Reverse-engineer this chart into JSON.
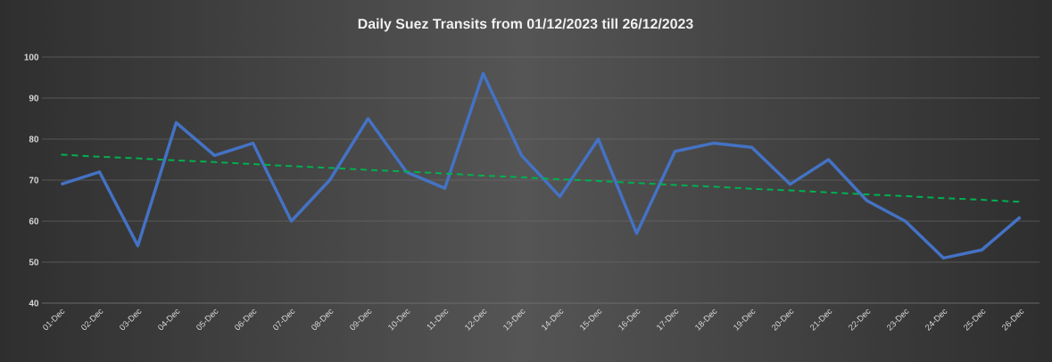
{
  "chart_data": {
    "type": "line",
    "title": "Daily Suez Transits from 01/12/2023 till 26/12/2023",
    "categories": [
      "01-Dec",
      "02-Dec",
      "03-Dec",
      "04-Dec",
      "05-Dec",
      "06-Dec",
      "07-Dec",
      "08-Dec",
      "09-Dec",
      "10-Dec",
      "11-Dec",
      "12-Dec",
      "13-Dec",
      "14-Dec",
      "15-Dec",
      "16-Dec",
      "17-Dec",
      "18-Dec",
      "19-Dec",
      "20-Dec",
      "21-Dec",
      "22-Dec",
      "23-Dec",
      "24-Dec",
      "25-Dec",
      "26-Dec"
    ],
    "series": [
      {
        "color": "#4472c4",
        "line_style": "solid",
        "values": [
          69,
          72,
          54,
          84,
          76,
          79,
          60,
          70,
          85,
          72,
          68,
          96,
          76,
          66,
          80,
          57,
          77,
          79,
          78,
          69,
          75,
          65,
          60,
          51,
          53,
          61
        ]
      },
      {
        "color": "#00b050",
        "line_style": "dashed",
        "values": [
          76.2,
          75.7,
          75.3,
          74.8,
          74.4,
          73.9,
          73.4,
          73.0,
          72.5,
          72.1,
          71.6,
          71.1,
          70.7,
          70.2,
          69.8,
          69.3,
          68.8,
          68.4,
          67.9,
          67.5,
          67.0,
          66.5,
          66.1,
          65.6,
          65.2,
          64.7
        ]
      }
    ],
    "ylim": [
      40,
      100
    ],
    "yticks": [
      40,
      50,
      60,
      70,
      80,
      90,
      100
    ],
    "grid": "y",
    "marker": "none"
  }
}
